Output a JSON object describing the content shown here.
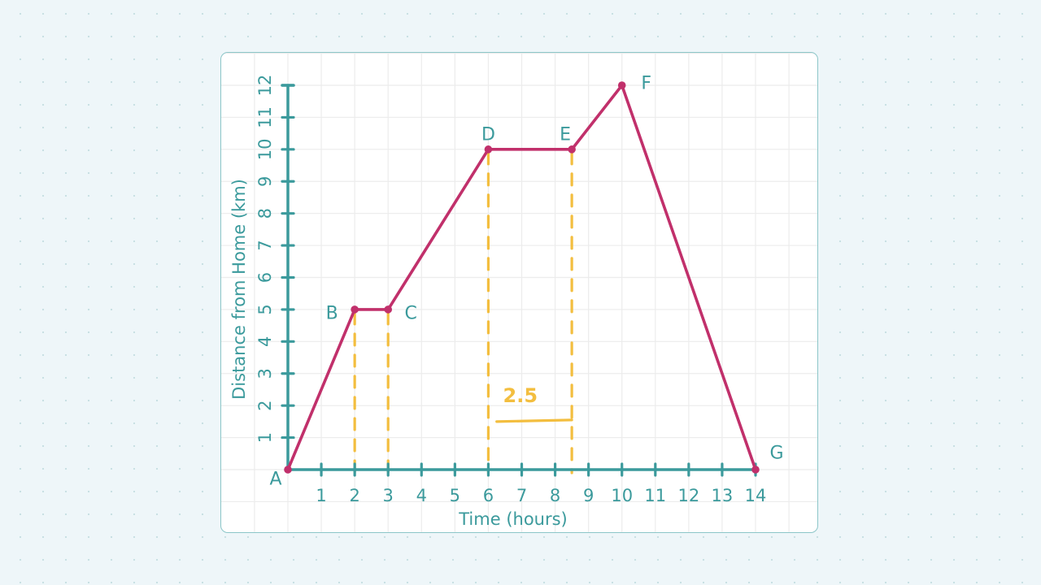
{
  "chart_data": {
    "type": "line",
    "title": "",
    "xlabel": "Time (hours)",
    "ylabel": "Distance from Home (km)",
    "xlim": [
      0,
      14
    ],
    "ylim": [
      0,
      12
    ],
    "x_ticks": [
      1,
      2,
      3,
      4,
      5,
      6,
      7,
      8,
      9,
      10,
      11,
      12,
      13,
      14
    ],
    "y_ticks": [
      1,
      2,
      3,
      4,
      5,
      6,
      7,
      8,
      9,
      10,
      11,
      12
    ],
    "grid": true,
    "series": [
      {
        "name": "journey",
        "color": "#c1306b",
        "points": [
          {
            "label": "A",
            "x": 0,
            "y": 0
          },
          {
            "label": "B",
            "x": 2,
            "y": 5
          },
          {
            "label": "C",
            "x": 3,
            "y": 5
          },
          {
            "label": "D",
            "x": 6,
            "y": 10
          },
          {
            "label": "E",
            "x": 8.5,
            "y": 10
          },
          {
            "label": "F",
            "x": 10,
            "y": 12
          },
          {
            "label": "G",
            "x": 14,
            "y": 0
          }
        ]
      }
    ],
    "annotations": [
      {
        "type": "dashed-vertical",
        "x": 2,
        "from_y": 5,
        "to_y": 0,
        "color": "#f3be3f"
      },
      {
        "type": "dashed-vertical",
        "x": 3,
        "from_y": 5,
        "to_y": 0,
        "color": "#f3be3f"
      },
      {
        "type": "dashed-vertical",
        "x": 6,
        "from_y": 10,
        "to_y": 0,
        "color": "#f3be3f"
      },
      {
        "type": "dashed-vertical",
        "x": 8.5,
        "from_y": 10,
        "to_y": 0,
        "color": "#f3be3f"
      },
      {
        "type": "handwritten-text",
        "text": "2.5",
        "x": 7.25,
        "y": 2.1,
        "color": "#f3be3f"
      }
    ]
  },
  "colors": {
    "axis": "#3b9a9c",
    "line": "#c1306b",
    "annotation": "#f3be3f",
    "grid": "#ececec",
    "background": "#eef6f9",
    "card_border": "#8cc6c8"
  }
}
